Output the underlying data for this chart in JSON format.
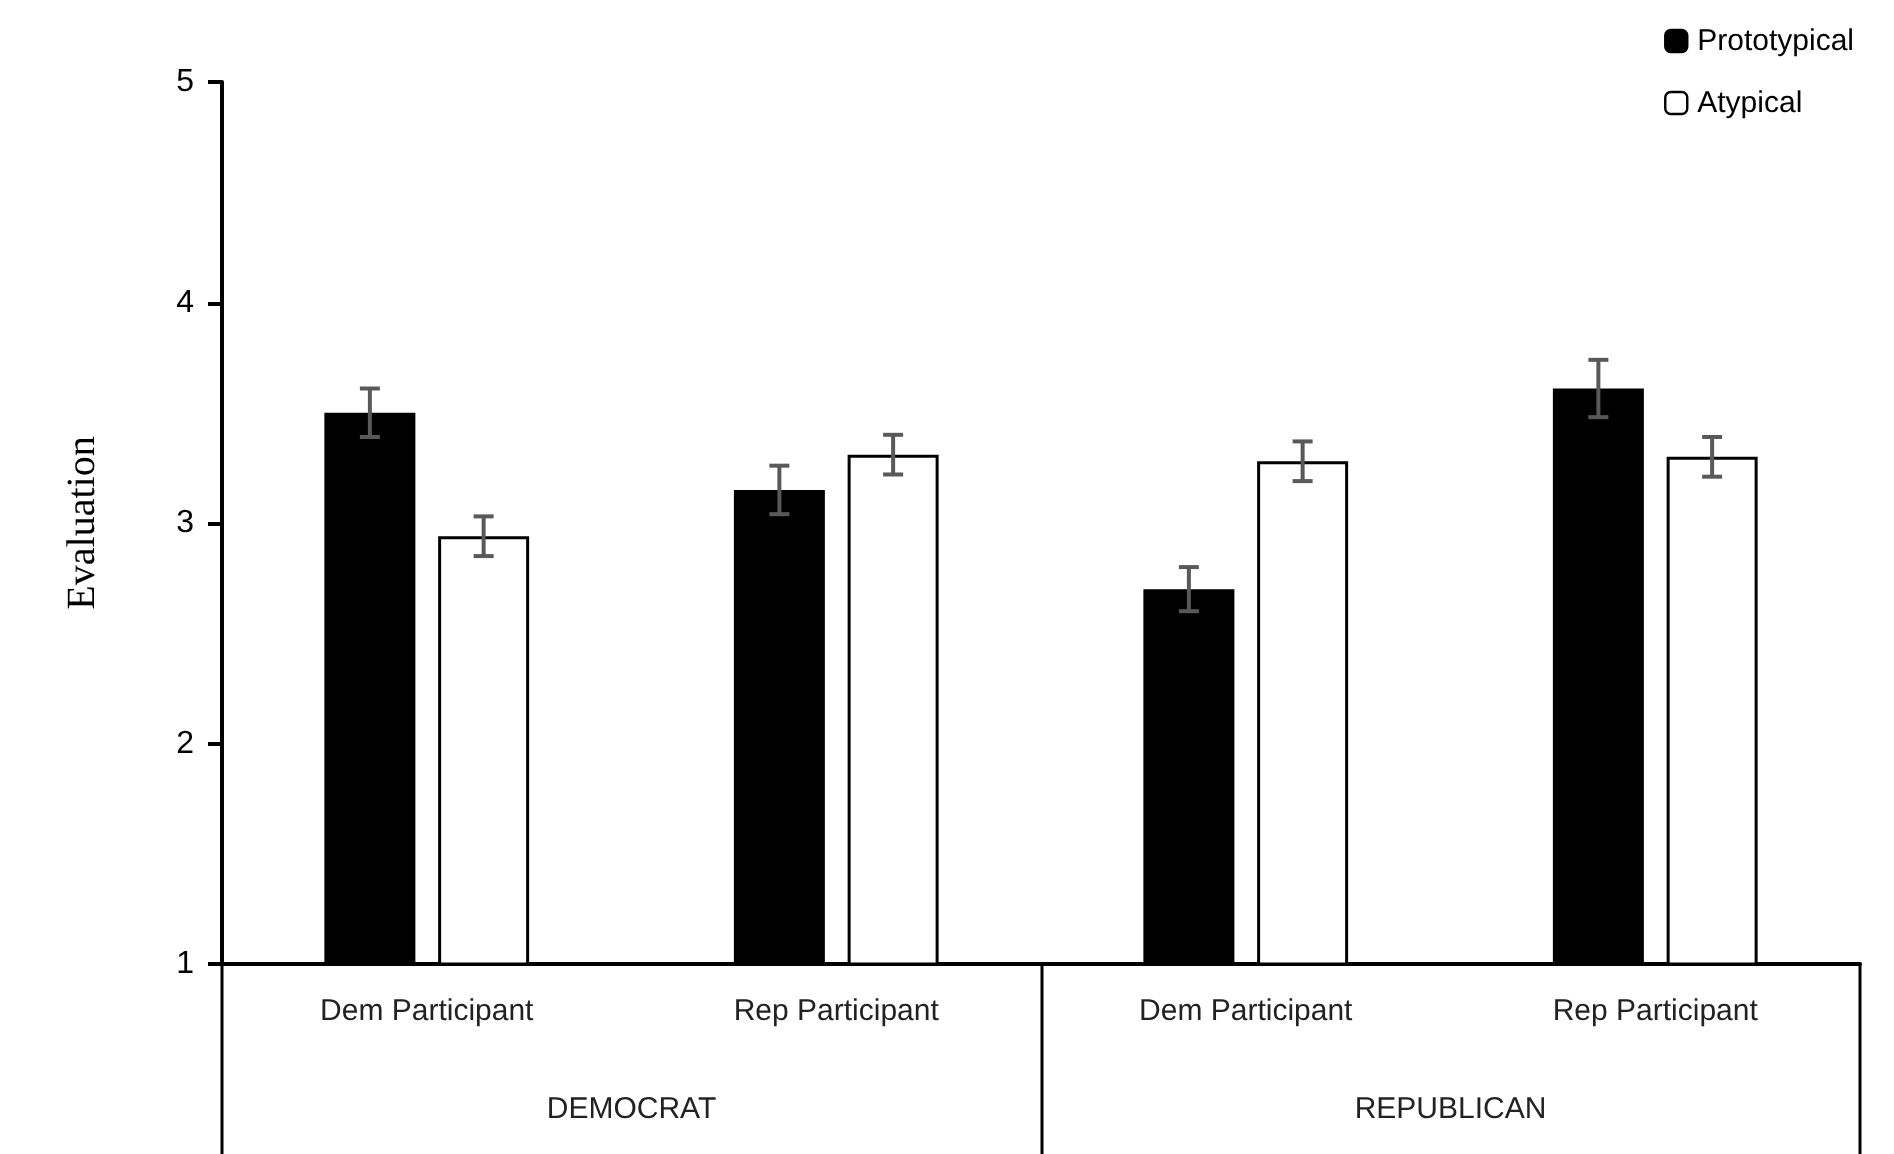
{
  "chart_data": {
    "type": "bar",
    "ylabel": "Evaluation",
    "categories": [
      "Dem Participant",
      "Rep Participant",
      "Dem Participant",
      "Rep Participant"
    ],
    "series": [
      {
        "name": "Prototypical",
        "color": "#000000",
        "values": [
          3.5,
          3.15,
          2.7,
          3.61
        ],
        "errors": [
          0.11,
          0.11,
          0.1,
          0.13
        ]
      },
      {
        "name": "Atypical",
        "color": "#ffffff",
        "values": [
          2.94,
          3.31,
          3.28,
          3.3
        ],
        "errors": [
          0.09,
          0.09,
          0.09,
          0.09
        ]
      }
    ],
    "annotations": [
      "DEMOCRAT",
      "REPUBLICAN"
    ],
    "ylim": [
      1,
      5
    ],
    "yticks": [
      1,
      2,
      3,
      4,
      5
    ],
    "grid": false,
    "legend": "top right"
  }
}
